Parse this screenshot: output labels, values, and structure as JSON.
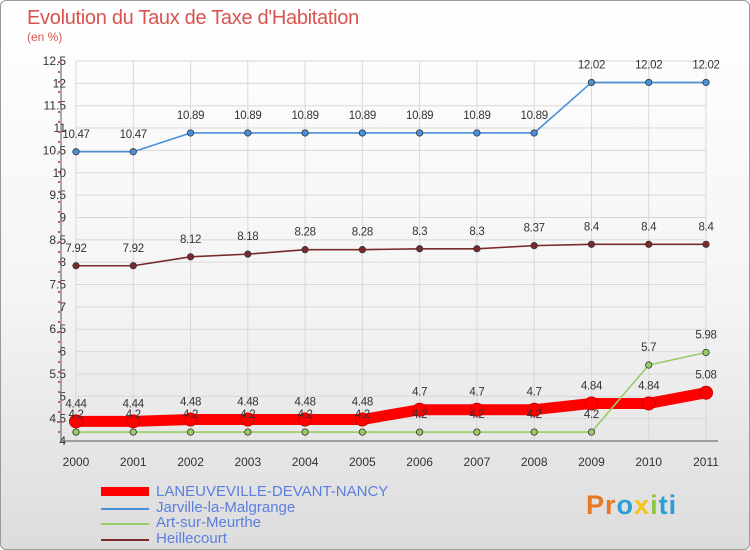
{
  "title": "Evolution du Taux de Taxe d'Habitation",
  "subtitle": "(en %)",
  "logo": {
    "text": "Proxiti",
    "letters": [
      "P",
      "r",
      "o",
      "x",
      "i",
      "t",
      "i"
    ],
    "colors": [
      "#e87722",
      "#e87722",
      "#2a9fd6",
      "#f5c518",
      "#8cc63f",
      "#2a9fd6",
      "#2a9fd6"
    ]
  },
  "chart_data": {
    "type": "line",
    "title": "Evolution du Taux de Taxe d'Habitation",
    "subtitle": "(en %)",
    "x": [
      "2000",
      "2001",
      "2002",
      "2003",
      "2004",
      "2005",
      "2006",
      "2007",
      "2008",
      "2009",
      "2010",
      "2011"
    ],
    "ylim": [
      4,
      12.5
    ],
    "yticks": [
      "4",
      "4.5",
      "5",
      "5.5",
      "6",
      "6.5",
      "7",
      "7.5",
      "8",
      "8.5",
      "9",
      "9.5",
      "10",
      "10.5",
      "11",
      "11.5",
      "12",
      "12.5"
    ],
    "grid": true,
    "legend_position": "bottom-left",
    "series": [
      {
        "name": "LANEUVEVILLE-DEVANT-NANCY",
        "color": "#ff0000",
        "values": [
          4.44,
          4.44,
          4.48,
          4.48,
          4.48,
          4.48,
          4.7,
          4.7,
          4.7,
          4.84,
          4.84,
          5.08
        ],
        "labels": [
          "4.44",
          "4.44",
          "4.48",
          "4.48",
          "4.48",
          "4.48",
          "4.7",
          "4.7",
          "4.7",
          "4.84",
          "4.84",
          "5.08"
        ]
      },
      {
        "name": "Jarville-la-Malgrange",
        "color": "#4a90d9",
        "values": [
          10.47,
          10.47,
          10.89,
          10.89,
          10.89,
          10.89,
          10.89,
          10.89,
          10.89,
          12.02,
          12.02,
          12.02
        ],
        "labels": [
          "10.47",
          "10.47",
          "10.89",
          "10.89",
          "10.89",
          "10.89",
          "10.89",
          "10.89",
          "10.89",
          "12.02",
          "12.02",
          "12.02"
        ]
      },
      {
        "name": "Art-sur-Meurthe",
        "color": "#99cc66",
        "values": [
          4.2,
          4.2,
          4.2,
          4.2,
          4.2,
          4.2,
          4.2,
          4.2,
          4.2,
          4.2,
          5.7,
          5.98
        ],
        "labels": [
          "4.2",
          "4.2",
          "4.2",
          "4.2",
          "4.2",
          "4.2",
          "4.2",
          "4.2",
          "4.2",
          "4.2",
          "5.7",
          "5.98"
        ]
      },
      {
        "name": "Heillecourt",
        "color": "#7a2a2a",
        "values": [
          7.92,
          7.92,
          8.12,
          8.18,
          8.28,
          8.28,
          8.3,
          8.3,
          8.37,
          8.4,
          8.4,
          8.4
        ],
        "labels": [
          "7.92",
          "7.92",
          "8.12",
          "8.18",
          "8.28",
          "8.28",
          "8.3",
          "8.3",
          "8.37",
          "8.4",
          "8.4",
          "8.4"
        ]
      }
    ]
  }
}
